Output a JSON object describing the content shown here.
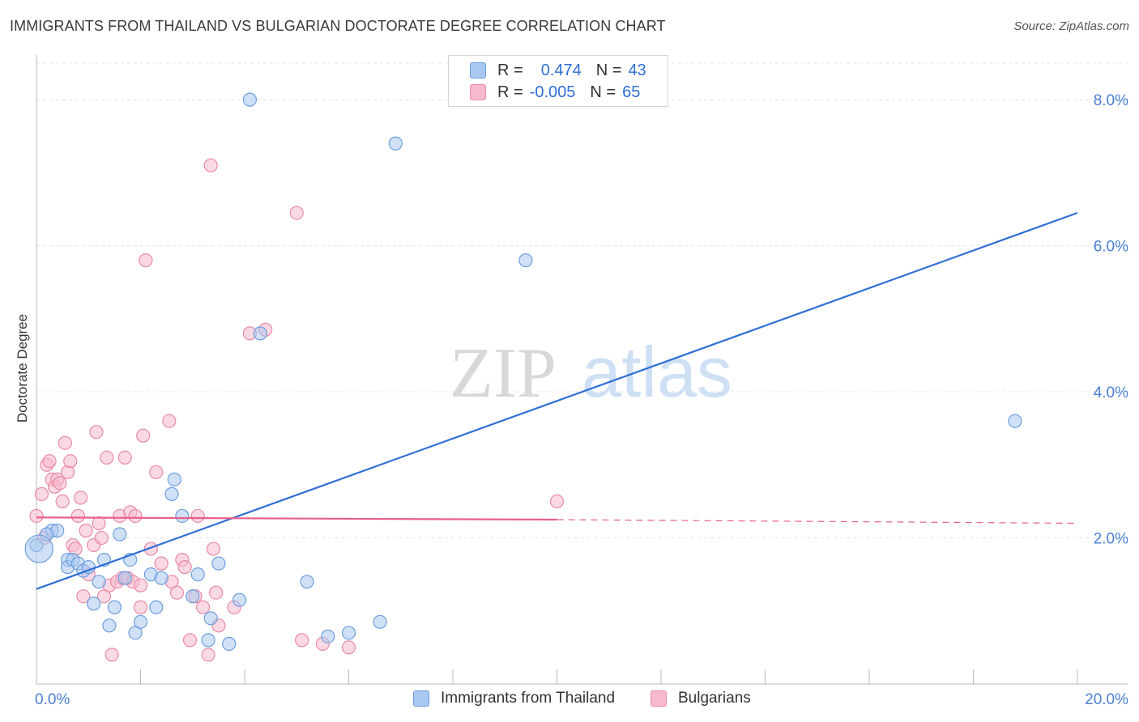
{
  "title": "IMMIGRANTS FROM THAILAND VS BULGARIAN DOCTORATE DEGREE CORRELATION CHART",
  "source": "Source: ZipAtlas.com",
  "watermark": {
    "part1": "ZIP",
    "part2": "atlas"
  },
  "legend": {
    "rows": [
      {
        "r_label": "R =",
        "r_value": "0.474",
        "n_label": "N =",
        "n_value": "43",
        "color": "#a9c8f0",
        "border": "#6e9ee0"
      },
      {
        "r_label": "R =",
        "r_value": "-0.005",
        "n_label": "N =",
        "n_value": "65",
        "color": "#f7b9cc",
        "border": "#e98aa7"
      }
    ]
  },
  "chart_data": {
    "type": "scatter",
    "title": "IMMIGRANTS FROM THAILAND VS BULGARIAN DOCTORATE DEGREE CORRELATION CHART",
    "xlabel": "",
    "ylabel": "Doctorate Degree",
    "xlim": [
      0,
      20
    ],
    "ylim": [
      0,
      8.5
    ],
    "x_tick_labels": [
      "0.0%",
      "20.0%"
    ],
    "y_ticks": [
      2,
      4,
      6,
      8
    ],
    "y_tick_labels": [
      "2.0%",
      "4.0%",
      "6.0%",
      "8.0%"
    ],
    "grid": true,
    "series": [
      {
        "name": "Immigrants from Thailand",
        "color": "#6e9ee0",
        "fill": "#a9c8f0",
        "trend": {
          "x": [
            0,
            20
          ],
          "y": [
            1.3,
            6.45
          ],
          "color": "#2f6fd6"
        },
        "points": [
          [
            0.0,
            1.9
          ],
          [
            0.3,
            2.1
          ],
          [
            0.4,
            2.1
          ],
          [
            0.6,
            1.7
          ],
          [
            0.6,
            1.6
          ],
          [
            0.7,
            1.7
          ],
          [
            0.8,
            1.65
          ],
          [
            0.9,
            1.55
          ],
          [
            1.1,
            1.1
          ],
          [
            1.2,
            1.4
          ],
          [
            1.3,
            1.7
          ],
          [
            1.4,
            0.8
          ],
          [
            1.5,
            1.05
          ],
          [
            1.6,
            2.05
          ],
          [
            1.7,
            1.45
          ],
          [
            1.8,
            1.7
          ],
          [
            1.9,
            0.7
          ],
          [
            2.0,
            0.85
          ],
          [
            2.2,
            1.5
          ],
          [
            2.3,
            1.05
          ],
          [
            2.4,
            1.45
          ],
          [
            2.6,
            2.6
          ],
          [
            2.65,
            2.8
          ],
          [
            2.8,
            2.3
          ],
          [
            3.0,
            1.2
          ],
          [
            3.1,
            1.5
          ],
          [
            3.3,
            0.6
          ],
          [
            3.35,
            0.9
          ],
          [
            3.5,
            1.65
          ],
          [
            3.7,
            0.55
          ],
          [
            3.9,
            1.15
          ],
          [
            4.1,
            8.0
          ],
          [
            4.3,
            4.8
          ],
          [
            5.2,
            1.4
          ],
          [
            5.6,
            0.65
          ],
          [
            6.0,
            0.7
          ],
          [
            6.6,
            0.85
          ],
          [
            6.9,
            7.4
          ],
          [
            9.4,
            5.8
          ],
          [
            18.8,
            3.6
          ],
          [
            0.2,
            2.05
          ],
          [
            1.0,
            1.6
          ],
          [
            0.05,
            1.85
          ]
        ]
      },
      {
        "name": "Bulgarians",
        "color": "#e98aa7",
        "fill": "#f7b9cc",
        "trend": {
          "x": [
            0,
            10
          ],
          "y": [
            2.28,
            2.25
          ],
          "dashed_to": [
            20,
            2.2
          ],
          "color": "#e8608b"
        },
        "points": [
          [
            0.0,
            2.3
          ],
          [
            0.1,
            2.6
          ],
          [
            0.15,
            2.0
          ],
          [
            0.2,
            3.0
          ],
          [
            0.25,
            3.05
          ],
          [
            0.3,
            2.8
          ],
          [
            0.35,
            2.7
          ],
          [
            0.4,
            2.8
          ],
          [
            0.5,
            2.5
          ],
          [
            0.55,
            3.3
          ],
          [
            0.6,
            2.9
          ],
          [
            0.65,
            3.05
          ],
          [
            0.7,
            1.9
          ],
          [
            0.75,
            1.85
          ],
          [
            0.8,
            2.3
          ],
          [
            0.85,
            2.55
          ],
          [
            0.9,
            1.2
          ],
          [
            0.95,
            2.1
          ],
          [
            1.0,
            1.5
          ],
          [
            1.1,
            1.9
          ],
          [
            1.15,
            3.45
          ],
          [
            1.2,
            2.2
          ],
          [
            1.25,
            2.0
          ],
          [
            1.3,
            1.2
          ],
          [
            1.35,
            3.1
          ],
          [
            1.4,
            1.35
          ],
          [
            1.45,
            0.4
          ],
          [
            1.55,
            1.4
          ],
          [
            1.6,
            2.3
          ],
          [
            1.65,
            1.45
          ],
          [
            1.7,
            3.1
          ],
          [
            1.75,
            1.45
          ],
          [
            1.8,
            2.35
          ],
          [
            1.85,
            1.4
          ],
          [
            1.9,
            2.3
          ],
          [
            2.0,
            1.05
          ],
          [
            2.05,
            3.4
          ],
          [
            2.1,
            5.8
          ],
          [
            2.2,
            1.85
          ],
          [
            2.3,
            2.9
          ],
          [
            2.4,
            1.65
          ],
          [
            2.55,
            3.6
          ],
          [
            2.6,
            1.4
          ],
          [
            2.7,
            1.25
          ],
          [
            2.8,
            1.7
          ],
          [
            2.85,
            1.6
          ],
          [
            2.95,
            0.6
          ],
          [
            3.05,
            1.2
          ],
          [
            3.1,
            2.3
          ],
          [
            3.2,
            1.05
          ],
          [
            3.3,
            0.4
          ],
          [
            3.4,
            1.85
          ],
          [
            3.45,
            1.25
          ],
          [
            3.5,
            0.8
          ],
          [
            3.8,
            1.05
          ],
          [
            4.1,
            4.8
          ],
          [
            4.4,
            4.85
          ],
          [
            5.0,
            6.45
          ],
          [
            5.1,
            0.6
          ],
          [
            5.5,
            0.55
          ],
          [
            6.0,
            0.5
          ],
          [
            3.35,
            7.1
          ],
          [
            2.0,
            1.35
          ],
          [
            10.0,
            2.5
          ],
          [
            0.45,
            2.75
          ]
        ]
      }
    ]
  }
}
